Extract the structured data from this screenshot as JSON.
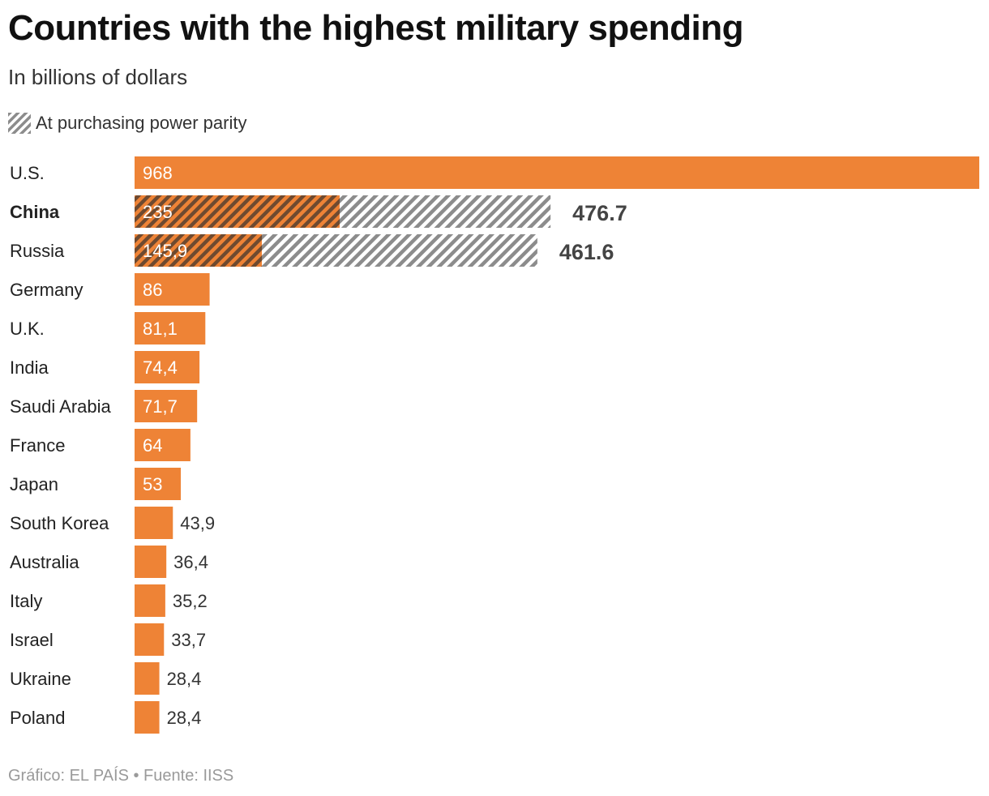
{
  "title": "Countries with the highest military spending",
  "subtitle": "In billions of dollars",
  "legend": {
    "ppp_label": "At purchasing power parity"
  },
  "source": "Gráfico: EL PAÍS • Fuente: IISS",
  "colors": {
    "bar": "#ee8336",
    "ppp_stripe": "#8c8c8c",
    "label_in_bar": "#ffffff",
    "label_out_bar": "#333333",
    "ppp_value": "#444444"
  },
  "chart_data": {
    "type": "bar",
    "orientation": "horizontal",
    "categories": [
      "U.S.",
      "China",
      "Russia",
      "Germany",
      "U.K.",
      "India",
      "Saudi Arabia",
      "France",
      "Japan",
      "South Korea",
      "Australia",
      "Italy",
      "Israel",
      "Ukraine",
      "Poland"
    ],
    "highlighted_category": "China",
    "series": [
      {
        "name": "",
        "values": [
          968,
          235,
          145.9,
          86,
          81.1,
          74.4,
          71.7,
          64,
          53,
          43.9,
          36.4,
          35.2,
          33.7,
          28.4,
          28.4
        ],
        "labels": [
          "968",
          "235",
          "145,9",
          "86",
          "81,1",
          "74,4",
          "71,7",
          "64",
          "53",
          "43,9",
          "36,4",
          "35,2",
          "33,7",
          "28,4",
          "28,4"
        ]
      },
      {
        "name": "At purchasing power parity",
        "values": [
          null,
          476.7,
          461.6,
          null,
          null,
          null,
          null,
          null,
          null,
          null,
          null,
          null,
          null,
          null,
          null
        ],
        "labels": [
          null,
          "476.7",
          "461.6",
          null,
          null,
          null,
          null,
          null,
          null,
          null,
          null,
          null,
          null,
          null,
          null
        ]
      }
    ],
    "xlim": [
      0,
      968
    ],
    "grid": false
  }
}
